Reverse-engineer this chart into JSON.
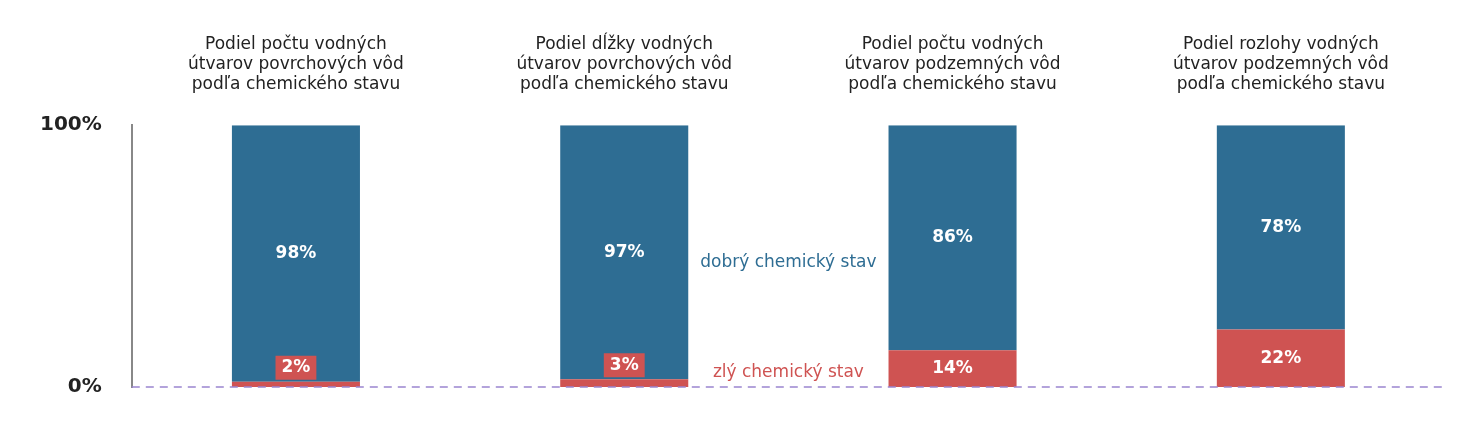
{
  "chart_data": {
    "type": "bar",
    "stacked": true,
    "categories": [
      "Podiel počtu vodných útvarov povrchových vôd podľa chemického stavu",
      "Podiel dĺžky vodných útvarov povrchových vôd podľa chemického stavu",
      "Podiel počtu vodných útvarov podzemných vôd podľa chemického stavu",
      "Podiel rozlohy vodných útvarov podzemných vôd podľa chemického stavu"
    ],
    "series": [
      {
        "name": "zlý chemický stav",
        "color": "#cf5352",
        "values": [
          2,
          3,
          14,
          22
        ],
        "value_labels": [
          "2%",
          "3%",
          "14%",
          "22%"
        ]
      },
      {
        "name": "dobrý chemický stav",
        "color": "#2e6d93",
        "values": [
          98,
          97,
          86,
          78
        ],
        "value_labels": [
          "98%",
          "97%",
          "86%",
          "78%"
        ]
      }
    ],
    "ylim": [
      0,
      100
    ],
    "yticks": [
      {
        "value": 0,
        "label": "0%"
      },
      {
        "value": 100,
        "label": "100%"
      }
    ],
    "ref_lines": [
      {
        "axis": "y",
        "value": 0,
        "color": "#9b85cf",
        "line_style": "dashed"
      }
    ],
    "grid": false,
    "legend": false
  }
}
